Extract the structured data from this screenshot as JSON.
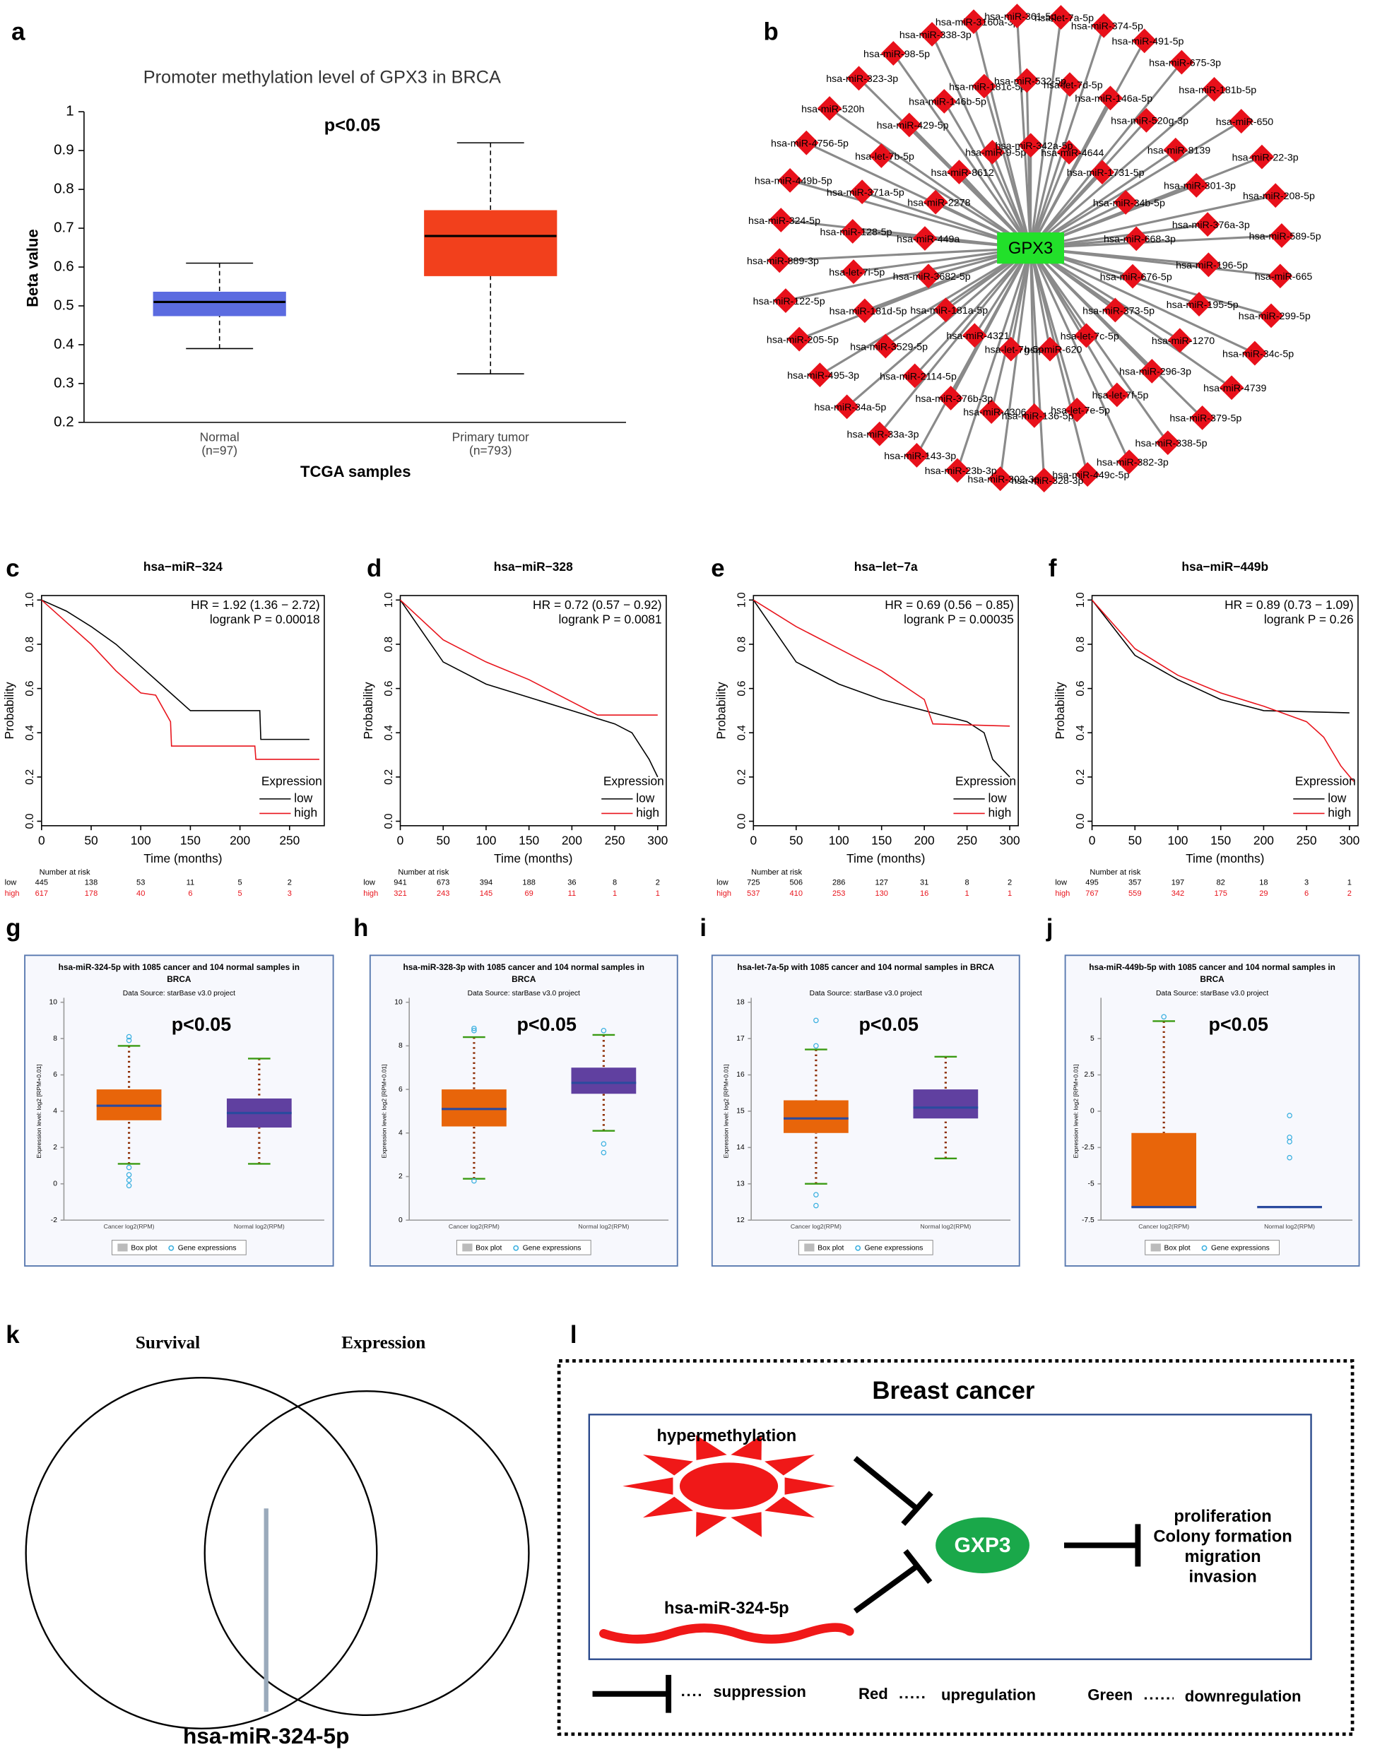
{
  "panel_labels": [
    "a",
    "b",
    "c",
    "d",
    "e",
    "f",
    "g",
    "h",
    "i",
    "j",
    "k",
    "l"
  ],
  "chart_data": [
    {
      "type": "box",
      "title": "Promoter methylation level of GPX3 in BRCA",
      "annotation": "p<0.05",
      "ylabel": "Beta value",
      "xlabel": "TCGA samples",
      "categories": [
        "Normal",
        "Primary tumor"
      ],
      "category_notes": [
        "(n=97)",
        "(n=793)"
      ],
      "colors": [
        "#5b6be0",
        "#f2401c"
      ],
      "boxes": [
        {
          "whisker_low": 0.39,
          "q1": 0.475,
          "median": 0.51,
          "q3": 0.535,
          "whisker_high": 0.61,
          "outliers": []
        },
        {
          "whisker_low": 0.325,
          "q1": 0.578,
          "median": 0.68,
          "q3": 0.745,
          "whisker_high": 0.92,
          "outliers": []
        }
      ],
      "ylim": [
        0.2,
        1
      ],
      "yticks": [
        0.2,
        0.3,
        0.4,
        0.5,
        0.6,
        0.7,
        0.8,
        0.9,
        1
      ]
    },
    {
      "type": "line",
      "title": "hsa−miR−324",
      "annotations": [
        "HR = 1.92 (1.36 − 2.72)",
        "logrank P = 0.00018"
      ],
      "xlabel": "Time (months)",
      "ylabel": "Probability",
      "legend_title": "Expression",
      "risk_title": "Number at risk",
      "series": [
        {
          "name": "low",
          "color": "#000000",
          "x": [
            0,
            25,
            50,
            75,
            100,
            125,
            150,
            175,
            220,
            221,
            270
          ],
          "values": [
            1,
            0.95,
            0.88,
            0.8,
            0.7,
            0.6,
            0.5,
            0.5,
            0.5,
            0.37,
            0.37
          ],
          "at_risk": [
            445,
            138,
            53,
            11,
            5,
            2
          ]
        },
        {
          "name": "high",
          "color": "#e8141c",
          "x": [
            0,
            25,
            50,
            75,
            100,
            115,
            130,
            131,
            215,
            216,
            280
          ],
          "values": [
            1,
            0.9,
            0.8,
            0.68,
            0.58,
            0.57,
            0.45,
            0.34,
            0.34,
            0.28,
            0.28
          ],
          "at_risk": [
            617,
            178,
            40,
            6,
            5,
            3
          ]
        }
      ],
      "xlim": [
        0,
        285
      ],
      "xticks": [
        0,
        50,
        100,
        150,
        200,
        250
      ],
      "ylim": [
        0,
        1
      ],
      "yticks": [
        {
          "value": 0,
          "label": "0.0"
        },
        0.2,
        0.4,
        0.6,
        0.8,
        {
          "value": 1,
          "label": "1.0"
        }
      ]
    },
    {
      "type": "line",
      "title": "hsa−miR−328",
      "annotations": [
        "HR = 0.72 (0.57 − 0.92)",
        "logrank P = 0.0081"
      ],
      "xlabel": "Time (months)",
      "ylabel": "Probability",
      "legend_title": "Expression",
      "risk_title": "Number at risk",
      "series": [
        {
          "name": "low",
          "color": "#000000",
          "x": [
            0,
            50,
            100,
            150,
            200,
            250,
            270,
            290,
            300
          ],
          "values": [
            1,
            0.72,
            0.62,
            0.56,
            0.5,
            0.44,
            0.4,
            0.28,
            0.2
          ],
          "at_risk": [
            941,
            673,
            394,
            188,
            36,
            8,
            2
          ]
        },
        {
          "name": "high",
          "color": "#e8141c",
          "x": [
            0,
            50,
            100,
            150,
            200,
            230,
            300
          ],
          "values": [
            1,
            0.82,
            0.72,
            0.64,
            0.54,
            0.48,
            0.48
          ],
          "at_risk": [
            321,
            243,
            145,
            69,
            11,
            1,
            1
          ]
        }
      ],
      "xlim": [
        0,
        310
      ],
      "xticks": [
        0,
        50,
        100,
        150,
        200,
        250,
        300
      ],
      "ylim": [
        0,
        1
      ],
      "yticks": [
        {
          "value": 0,
          "label": "0.0"
        },
        0.2,
        0.4,
        0.6,
        0.8,
        {
          "value": 1,
          "label": "1.0"
        }
      ]
    },
    {
      "type": "line",
      "title": "hsa−let−7a",
      "annotations": [
        "HR = 0.69 (0.56 − 0.85)",
        "logrank P = 0.00035"
      ],
      "xlabel": "Time (months)",
      "ylabel": "Probability",
      "legend_title": "Expression",
      "risk_title": "Number at risk",
      "series": [
        {
          "name": "low",
          "color": "#000000",
          "x": [
            0,
            50,
            100,
            150,
            200,
            250,
            270,
            280,
            300
          ],
          "values": [
            1,
            0.72,
            0.62,
            0.55,
            0.5,
            0.45,
            0.4,
            0.28,
            0.2
          ],
          "at_risk": [
            725,
            506,
            286,
            127,
            31,
            8,
            2
          ]
        },
        {
          "name": "high",
          "color": "#e8141c",
          "x": [
            0,
            50,
            100,
            150,
            200,
            210,
            300
          ],
          "values": [
            1,
            0.88,
            0.78,
            0.68,
            0.55,
            0.44,
            0.43
          ],
          "at_risk": [
            537,
            410,
            253,
            130,
            16,
            1,
            1
          ]
        }
      ],
      "xlim": [
        0,
        310
      ],
      "xticks": [
        0,
        50,
        100,
        150,
        200,
        250,
        300
      ],
      "ylim": [
        0,
        1
      ],
      "yticks": [
        {
          "value": 0,
          "label": "0.0"
        },
        0.2,
        0.4,
        0.6,
        0.8,
        {
          "value": 1,
          "label": "1.0"
        }
      ]
    },
    {
      "type": "line",
      "title": "hsa−miR−449b",
      "annotations": [
        "HR = 0.89 (0.73 − 1.09)",
        "logrank P = 0.26"
      ],
      "xlabel": "Time (months)",
      "ylabel": "Probability",
      "legend_title": "Expression",
      "risk_title": "Number at risk",
      "series": [
        {
          "name": "low",
          "color": "#000000",
          "x": [
            0,
            50,
            100,
            150,
            200,
            300
          ],
          "values": [
            1,
            0.75,
            0.64,
            0.55,
            0.5,
            0.49
          ],
          "at_risk": [
            495,
            357,
            197,
            82,
            18,
            3,
            1
          ]
        },
        {
          "name": "high",
          "color": "#e8141c",
          "x": [
            0,
            50,
            100,
            150,
            200,
            250,
            270,
            290,
            305
          ],
          "values": [
            1,
            0.78,
            0.66,
            0.58,
            0.52,
            0.45,
            0.38,
            0.25,
            0.18
          ],
          "at_risk": [
            767,
            559,
            342,
            175,
            29,
            6,
            2
          ]
        }
      ],
      "xlim": [
        0,
        310
      ],
      "xticks": [
        0,
        50,
        100,
        150,
        200,
        250,
        300
      ],
      "ylim": [
        0,
        1
      ],
      "yticks": [
        {
          "value": 0,
          "label": "0.0"
        },
        0.2,
        0.4,
        0.6,
        0.8,
        {
          "value": 1,
          "label": "1.0"
        }
      ]
    },
    {
      "type": "box",
      "title": [
        "hsa-miR-324-5p with 1085 cancer and 104 normal samples in",
        "BRCA"
      ],
      "subtitle": "Data Source: starBase v3.0 project",
      "annotation": "p<0.05",
      "ylabel": "Expression level: log2 [RPM+0.01]",
      "categories": [
        "Cancer log2(RPM)",
        "Normal log2(RPM)"
      ],
      "legend": [
        "Box plot",
        "Gene expressions"
      ],
      "colors": [
        "#e8650a",
        "#6040a0"
      ],
      "boxes": [
        {
          "whisker_low": 1.1,
          "q1": 3.5,
          "median": 4.3,
          "q3": 5.2,
          "whisker_high": 7.6,
          "outliers": [
            7.9,
            8.1,
            0.9,
            0.5,
            0.2,
            -0.1
          ]
        },
        {
          "whisker_low": 1.1,
          "q1": 3.1,
          "median": 3.9,
          "q3": 4.7,
          "whisker_high": 6.9,
          "outliers": []
        }
      ],
      "ylim": [
        -2,
        10
      ],
      "yticks": [
        -2,
        0,
        2,
        4,
        6,
        8,
        10
      ]
    },
    {
      "type": "box",
      "title": [
        "hsa-miR-328-3p with 1085 cancer and 104 normal samples in",
        "BRCA"
      ],
      "subtitle": "Data Source: starBase v3.0 project",
      "annotation": "p<0.05",
      "ylabel": "Expression level: log2 [RPM+0.01]",
      "categories": [
        "Cancer log2(RPM)",
        "Normal log2(RPM)"
      ],
      "legend": [
        "Box plot",
        "Gene expressions"
      ],
      "colors": [
        "#e8650a",
        "#6040a0"
      ],
      "boxes": [
        {
          "whisker_low": 1.9,
          "q1": 4.3,
          "median": 5.1,
          "q3": 6.0,
          "whisker_high": 8.4,
          "outliers": [
            8.7,
            8.8,
            1.8
          ]
        },
        {
          "whisker_low": 4.1,
          "q1": 5.8,
          "median": 6.3,
          "q3": 7.0,
          "whisker_high": 8.5,
          "outliers": [
            8.7,
            3.5,
            3.1
          ]
        }
      ],
      "ylim": [
        0,
        10
      ],
      "yticks": [
        0,
        2,
        4,
        6,
        8,
        10
      ]
    },
    {
      "type": "box",
      "title": [
        "hsa-let-7a-5p with 1085 cancer and 104 normal samples in BRCA"
      ],
      "subtitle": "Data Source: starBase v3.0 project",
      "annotation": "p<0.05",
      "ylabel": "Expression level: log2 [RPM+0.01]",
      "categories": [
        "Cancer log2(RPM)",
        "Normal log2(RPM)"
      ],
      "legend": [
        "Box plot",
        "Gene expressions"
      ],
      "colors": [
        "#e8650a",
        "#6040a0"
      ],
      "boxes": [
        {
          "whisker_low": 13.0,
          "q1": 14.4,
          "median": 14.8,
          "q3": 15.3,
          "whisker_high": 16.7,
          "outliers": [
            17.5,
            16.8,
            12.7,
            12.4
          ]
        },
        {
          "whisker_low": 13.7,
          "q1": 14.8,
          "median": 15.1,
          "q3": 15.6,
          "whisker_high": 16.5,
          "outliers": []
        }
      ],
      "ylim": [
        12,
        18
      ],
      "yticks": [
        12,
        13,
        14,
        15,
        16,
        17,
        18
      ]
    },
    {
      "type": "box",
      "title": [
        "hsa-miR-449b-5p with 1085 cancer and 104 normal samples in",
        "BRCA"
      ],
      "subtitle": "Data Source: starBase v3.0 project",
      "annotation": "p<0.05",
      "ylabel": "Expression level: log2 [RPM+0.01]",
      "categories": [
        "Cancer log2(RPM)",
        "Normal log2(RPM)"
      ],
      "legend": [
        "Box plot",
        "Gene expressions"
      ],
      "colors": [
        "#e8650a",
        "#6040a0"
      ],
      "boxes": [
        {
          "whisker_low": -6.6,
          "q1": -6.6,
          "median": -6.6,
          "q3": -1.5,
          "whisker_high": 6.2,
          "outliers": [
            6.5
          ]
        },
        {
          "whisker_low": -6.6,
          "q1": -6.6,
          "median": -6.6,
          "q3": -6.6,
          "whisker_high": -6.6,
          "outliers": [
            -0.3,
            -1.8,
            -2.1,
            -3.2
          ]
        }
      ],
      "ylim": [
        -7.5,
        7.5
      ],
      "yticks": [
        -7.5,
        -5,
        -2.5,
        0,
        2.5,
        5
      ]
    }
  ],
  "network": {
    "center": "GPX3",
    "nodes": [
      "hsa-let-7a-5p",
      "hsa-miR-374-5p",
      "hsa-miR-491-5p",
      "hsa-miR-675-3p",
      "hsa-miR-181b-5p",
      "hsa-miR-650",
      "hsa-miR-22-3p",
      "hsa-miR-208-5p",
      "hsa-miR-589-5p",
      "hsa-miR-665",
      "hsa-miR-299-5p",
      "hsa-miR-34c-5p",
      "hsa-miR-4739",
      "hsa-miR-379-5p",
      "hsa-miR-338-5p",
      "hsa-miR-382-3p",
      "hsa-miR-449c-5p",
      "hsa-miR-328-3p",
      "hsa-miR-302-3p",
      "hsa-miR-23b-3p",
      "hsa-miR-143-3p",
      "hsa-miR-33a-3p",
      "hsa-miR-34a-5p",
      "hsa-miR-495-3p",
      "hsa-miR-205-5p",
      "hsa-miR-122-5p",
      "hsa-miR-889-3p",
      "hsa-miR-324-5p",
      "hsa-miR-449b-5p",
      "hsa-miR-4756-5p",
      "hsa-miR-520h",
      "hsa-miR-323-3p",
      "hsa-miR-98-5p",
      "hsa-miR-338-3p",
      "hsa-miR-3160a-3p",
      "hsa-miR-361-5p",
      "hsa-let-7d-5p",
      "hsa-miR-146a-5p",
      "hsa-miR-520g-3p",
      "hsa-miR-8139",
      "hsa-miR-301-3p",
      "hsa-miR-376a-3p",
      "hsa-miR-196-5p",
      "hsa-miR-195-5p",
      "hsa-miR-1270",
      "hsa-miR-296-3p",
      "hsa-let-7f-5p",
      "hsa-let-7e-5p",
      "hsa-miR-136-5p",
      "hsa-miR-4306",
      "hsa-miR-376b-3p",
      "hsa-miR-2114-5p",
      "hsa-miR-3529-5p",
      "hsa-miR-181d-5p",
      "hsa-let-7i-5p",
      "hsa-miR-128-5p",
      "hsa-miR-371a-5p",
      "hsa-let-7b-5p",
      "hsa-miR-429-5p",
      "hsa-miR-146b-5p",
      "hsa-miR-181c-5p",
      "hsa-miR-532-5p",
      "hsa-miR-4644",
      "hsa-miR-1731-5p",
      "hsa-miR-34b-5p",
      "hsa-miR-668-3p",
      "hsa-miR-676-5p",
      "hsa-miR-373-5p",
      "hsa-let-7c-5p",
      "hsa-miR-620",
      "hsa-let-7g-5p",
      "hsa-miR-4321",
      "hsa-miR-181a-5p",
      "hsa-miR-3682-5p",
      "hsa-miR-449a",
      "hsa-miR-2278",
      "hsa-miR-8612",
      "hsa-miR-9-5p",
      "hsa-miR-342a-5p"
    ]
  },
  "venn": {
    "sets": [
      "Survival",
      "Expression"
    ],
    "label": "hsa-miR-324-5p"
  },
  "model": {
    "title": "Breast cancer",
    "regulators": [
      "hypermethylation",
      "hsa-miR-324-5p"
    ],
    "target": "GXP3",
    "outcomes": [
      "proliferation",
      "Colony formation",
      "migration",
      "invasion"
    ],
    "legend": [
      "suppression",
      "Red",
      "upregulation",
      "Green",
      "downregulation"
    ]
  }
}
